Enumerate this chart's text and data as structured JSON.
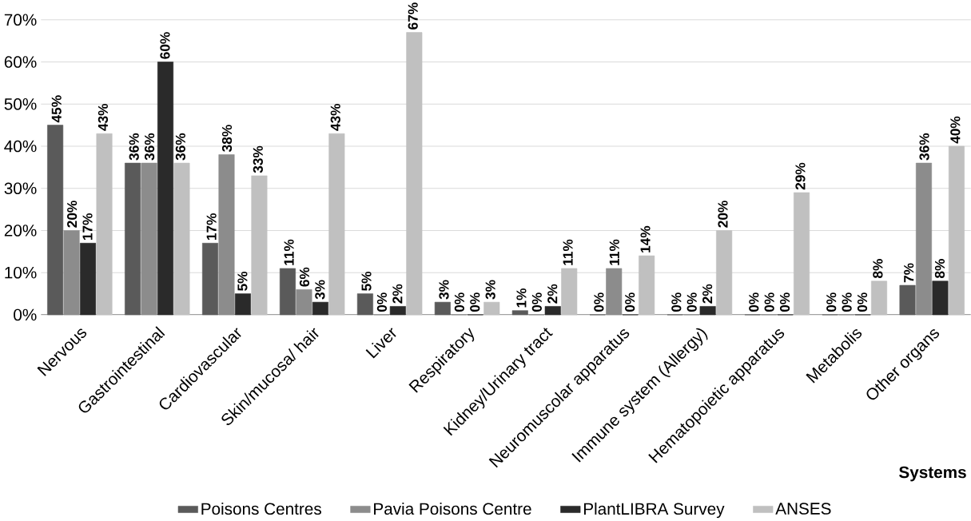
{
  "chart_data": {
    "type": "bar",
    "xlabel": "Systems",
    "categories": [
      "Nervous",
      "Gastrointestinal",
      "Cardiovascular",
      "Skin/mucosa/ hair",
      "Liver",
      "Respiratory",
      "Kidney/Urinary tract",
      "Neuromuscolar apparatus",
      "Immune system (Allergy)",
      "Hematopoietic apparatus",
      "Metabolis",
      "Other organs"
    ],
    "series": [
      {
        "name": "Poisons Centres",
        "color": "#5a5a5a",
        "values": [
          45,
          36,
          17,
          11,
          5,
          3,
          1,
          0,
          0,
          0,
          0,
          7
        ],
        "value_labels": [
          "45%",
          "36%",
          "17%",
          "11%",
          "5%",
          "3%",
          "1%",
          "0%",
          "0%",
          "0%",
          "0%",
          "7%"
        ]
      },
      {
        "name": "Pavia Poisons Centre",
        "color": "#8c8c8c",
        "values": [
          20,
          36,
          38,
          6,
          0,
          0,
          0,
          11,
          0,
          0,
          0,
          36
        ],
        "value_labels": [
          "20%",
          "36%",
          "38%",
          "6%",
          "0%",
          "0%",
          "0%",
          "11%",
          "0%",
          "0%",
          "0%",
          "36%"
        ]
      },
      {
        "name": "PlantLIBRA Survey",
        "color": "#2a2a2a",
        "values": [
          17,
          60,
          5,
          3,
          2,
          0,
          2,
          0,
          2,
          0,
          0,
          8
        ],
        "value_labels": [
          "17%",
          "60%",
          "5%",
          "3%",
          "2%",
          "0%",
          "2%",
          "0%",
          "2%",
          "0%",
          "0%",
          "8%"
        ]
      },
      {
        "name": "ANSES",
        "color": "#c0c0c0",
        "values": [
          43,
          36,
          33,
          43,
          67,
          3,
          11,
          14,
          20,
          29,
          8,
          40
        ],
        "value_labels": [
          "43%",
          "36%",
          "33%",
          "43%",
          "67%",
          "3%",
          "11%",
          "14%",
          "20%",
          "29%",
          "8%",
          "40%"
        ]
      }
    ],
    "ylim": [
      0,
      70
    ],
    "yticks": [
      {
        "value": 0,
        "label": "0%"
      },
      {
        "value": 10,
        "label": "10%"
      },
      {
        "value": 20,
        "label": "20%"
      },
      {
        "value": 30,
        "label": "30%"
      },
      {
        "value": 40,
        "label": "40%"
      },
      {
        "value": 50,
        "label": "50%"
      },
      {
        "value": 60,
        "label": "60%"
      },
      {
        "value": 70,
        "label": "70%"
      }
    ],
    "grid": "y",
    "legend": "bottom"
  }
}
